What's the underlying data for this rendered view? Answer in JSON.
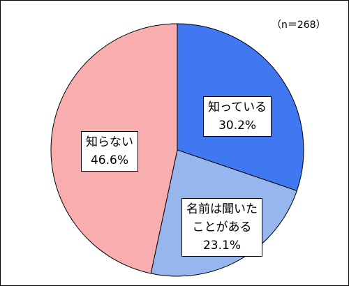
{
  "sample_note": "（n＝268）",
  "colors": {
    "known": "#3f78f1",
    "heard": "#97b6ed",
    "unknown": "#f8adae",
    "border": "#000000"
  },
  "chart_data": {
    "type": "pie",
    "title": "",
    "slices": [
      {
        "lines": [
          "知っている"
        ],
        "value": 30.2,
        "value_label": "30.2%",
        "color": "#3f78f1"
      },
      {
        "lines": [
          "名前は聞いた",
          "ことがある"
        ],
        "value": 23.1,
        "value_label": "23.1%",
        "color": "#97b6ed"
      },
      {
        "lines": [
          "知らない"
        ],
        "value": 46.6,
        "value_label": "46.6%",
        "color": "#f8adae"
      }
    ]
  }
}
